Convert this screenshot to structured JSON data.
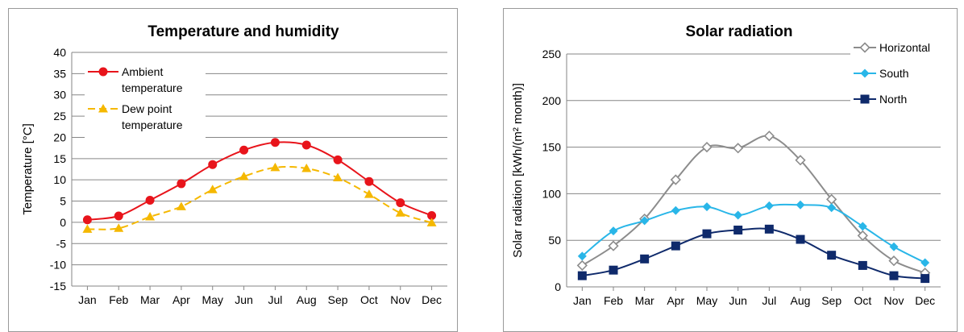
{
  "chart_data": [
    {
      "type": "line",
      "title": "Temperature and humidity",
      "xlabel": "",
      "ylabel": "Temperature [°C]",
      "ylim": [
        -15,
        40
      ],
      "yticks": [
        -15,
        -10,
        -5,
        0,
        5,
        10,
        15,
        20,
        25,
        30,
        35,
        40
      ],
      "grid": true,
      "legend_position": "top-left",
      "categories": [
        "Jan",
        "Feb",
        "Mar",
        "Apr",
        "May",
        "Jun",
        "Jul",
        "Aug",
        "Sep",
        "Oct",
        "Nov",
        "Dec"
      ],
      "series": [
        {
          "name": "Ambient temperature",
          "name_lines": [
            "Ambient",
            "temperature"
          ],
          "color": "#e8141b",
          "marker": "circle",
          "dash": false,
          "values": [
            0.6,
            1.5,
            5.2,
            9.1,
            13.6,
            17.0,
            18.8,
            18.2,
            14.7,
            9.6,
            4.6,
            1.6
          ]
        },
        {
          "name": "Dew point temperature",
          "name_lines": [
            "Dew point",
            "temperature"
          ],
          "color": "#f5b800",
          "marker": "triangle",
          "dash": true,
          "values": [
            -1.6,
            -1.4,
            1.3,
            3.7,
            7.7,
            10.8,
            12.9,
            12.7,
            10.5,
            6.6,
            2.2,
            -0.1
          ]
        }
      ]
    },
    {
      "type": "line",
      "title": "Solar radiation",
      "xlabel": "",
      "ylabel": "Solar radiation [kWh/(m² month)]",
      "ylim": [
        0,
        250
      ],
      "yticks": [
        0,
        50,
        100,
        150,
        200,
        250
      ],
      "grid": true,
      "legend_position": "top-right",
      "categories": [
        "Jan",
        "Feb",
        "Mar",
        "Apr",
        "May",
        "Jun",
        "Jul",
        "Aug",
        "Sep",
        "Oct",
        "Nov",
        "Dec"
      ],
      "series": [
        {
          "name": "Horizontal",
          "color": "#8c8c8c",
          "marker": "diamond-open",
          "values": [
            23,
            44,
            73,
            115,
            150,
            149,
            162,
            136,
            94,
            55,
            28,
            15
          ]
        },
        {
          "name": "South",
          "color": "#29b6e8",
          "marker": "diamond",
          "values": [
            33,
            60,
            71,
            82,
            86,
            77,
            87,
            88,
            85,
            65,
            43,
            26
          ]
        },
        {
          "name": "North",
          "color": "#0f2a6b",
          "marker": "square",
          "values": [
            12,
            18,
            30,
            44,
            57,
            61,
            62,
            51,
            34,
            23,
            12,
            9
          ]
        }
      ]
    }
  ]
}
